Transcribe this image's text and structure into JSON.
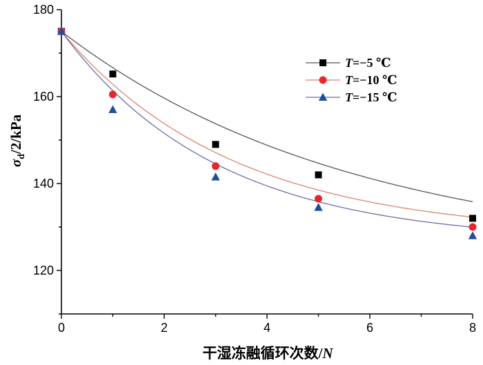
{
  "chart_data": {
    "type": "scatter",
    "xlabel_text": "干湿冻融循环次数/",
    "xlabel_var": "N",
    "ylabel_sigma": "σ",
    "ylabel_sub": "d",
    "ylabel_rest": "/2/kPa",
    "xlim": [
      0,
      8
    ],
    "ylim": [
      110,
      180
    ],
    "x_ticks": [
      0,
      2,
      4,
      6,
      8
    ],
    "y_ticks": [
      120,
      140,
      160,
      180
    ],
    "legend_position": "top-right",
    "grid": false,
    "series": [
      {
        "name": "T=−5 ℃",
        "name_var": "T",
        "name_rest": "=−5 ℃",
        "marker": "square",
        "color": "#000000",
        "line_color": "#555555",
        "x": [
          0,
          1,
          3,
          5,
          8
        ],
        "y": [
          175,
          165.2,
          149,
          142,
          132
        ],
        "fit": {
          "y0": 175,
          "A": 52.0,
          "k": 0.175
        }
      },
      {
        "name": "T=−10 ℃",
        "name_var": "T",
        "name_rest": "=−10 ℃",
        "marker": "circle",
        "color": "#e8262a",
        "line_color": "#d9826e",
        "x": [
          0,
          1,
          3,
          5,
          8
        ],
        "y": [
          175,
          160.5,
          144,
          136.5,
          130
        ],
        "fit": {
          "y0": 175,
          "A": 47.0,
          "k": 0.3
        }
      },
      {
        "name": "T=−15 ℃",
        "name_var": "T",
        "name_rest": "=−15 ℃",
        "marker": "triangle",
        "color": "#1f4e9c",
        "line_color": "#6b6ba8",
        "x": [
          0,
          1,
          3,
          5,
          8
        ],
        "y": [
          175,
          157,
          141.5,
          134.5,
          128
        ],
        "fit": {
          "y0": 175,
          "A": 48.5,
          "k": 0.33
        }
      }
    ]
  }
}
